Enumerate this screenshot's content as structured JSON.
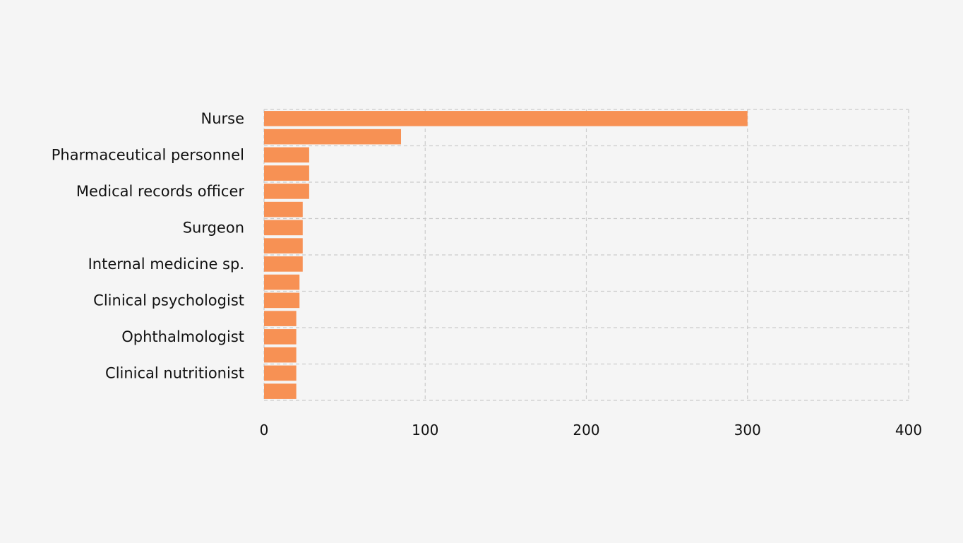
{
  "chart_data": {
    "type": "bar",
    "orientation": "horizontal",
    "title": "",
    "xlabel": "",
    "ylabel": "",
    "xlim": [
      0,
      400
    ],
    "x_ticks": [
      0,
      100,
      200,
      300,
      400
    ],
    "grid": true,
    "legend": "none",
    "bar_color": "#f79154",
    "background": "#f5f5f5",
    "grid_color": "#cccccc",
    "categories": [
      "Nurse",
      "",
      "Pharmaceutical personnel",
      "",
      "Medical records officer",
      "",
      "Surgeon",
      "",
      "Internal medicine sp.",
      "",
      "Clinical psychologist",
      "",
      "Ophthalmologist",
      "",
      "Clinical nutritionist",
      ""
    ],
    "values": [
      300,
      85,
      28,
      28,
      28,
      24,
      24,
      24,
      24,
      22,
      22,
      20,
      20,
      20,
      20,
      20
    ]
  }
}
